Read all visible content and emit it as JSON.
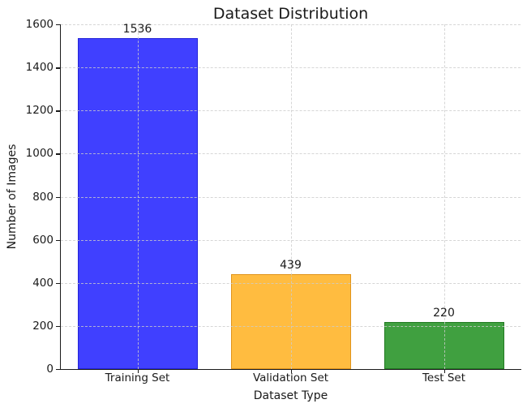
{
  "figure": {
    "background_color": "#ffffff",
    "axis_color": "#1a1a1a",
    "grid_color": "#cccccc",
    "text_color": "#1a1a1a"
  },
  "chart_data": {
    "type": "bar",
    "title": "Dataset Distribution",
    "xlabel": "Dataset Type",
    "ylabel": "Number of Images",
    "categories": [
      "Training Set",
      "Validation Set",
      "Test Set"
    ],
    "values": [
      1536,
      439,
      220
    ],
    "bar_colors": [
      "#0000FFBF",
      "#FFA500BF",
      "#008000BF"
    ],
    "bar_edge_colors": [
      "#2424D9",
      "#E0941C",
      "#227A22"
    ],
    "ylim": [
      0,
      1600
    ],
    "yticks": [
      0,
      200,
      400,
      600,
      800,
      1000,
      1200,
      1400,
      1600
    ],
    "grid": {
      "style": "dashed",
      "axes": "both",
      "on_top_of_bars": true
    },
    "value_labels_shown": true,
    "legend": "none"
  }
}
